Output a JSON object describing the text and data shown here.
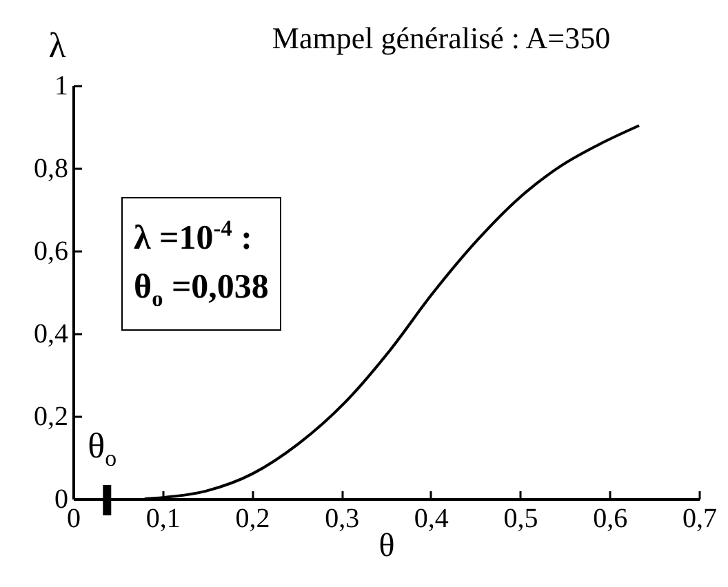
{
  "chart_data": {
    "type": "line",
    "title": "Mampel généralisé : A=350",
    "xlabel": "θ",
    "ylabel": "λ",
    "x": [
      0.08,
      0.1,
      0.149,
      0.201,
      0.252,
      0.304,
      0.355,
      0.401,
      0.453,
      0.499,
      0.546,
      0.587,
      0.633
    ],
    "series": [
      {
        "color": "#000000",
        "values": [
          0,
          0.003,
          0.019,
          0.061,
          0.133,
          0.233,
          0.361,
          0.494,
          0.628,
          0.728,
          0.806,
          0.856,
          0.903
        ]
      }
    ],
    "xlim": [
      0,
      0.7
    ],
    "ylim": [
      0,
      1
    ],
    "xticks": [
      0,
      {
        "value": 0.1,
        "label": "0,1"
      },
      {
        "value": 0.2,
        "label": "0,2"
      },
      {
        "value": 0.3,
        "label": "0,3"
      },
      {
        "value": 0.4,
        "label": "0,4"
      },
      {
        "value": 0.5,
        "label": "0,5"
      },
      {
        "value": 0.6,
        "label": "0,6"
      },
      {
        "value": 0.7,
        "label": "0,7"
      }
    ],
    "yticks": [
      0,
      {
        "value": 0.2,
        "label": "0,2"
      },
      {
        "value": 0.4,
        "label": "0,4"
      },
      {
        "value": 0.6,
        "label": "0,6"
      },
      {
        "value": 0.8,
        "label": "0,8"
      },
      1
    ],
    "ref_lines": [
      {
        "axis": "x",
        "value": 0.038,
        "label": "θ$_{o}$"
      }
    ],
    "annotations": [
      "λ =10$^{-4}$ :",
      "θ$_{o}$ =0,038"
    ],
    "grid": false
  }
}
